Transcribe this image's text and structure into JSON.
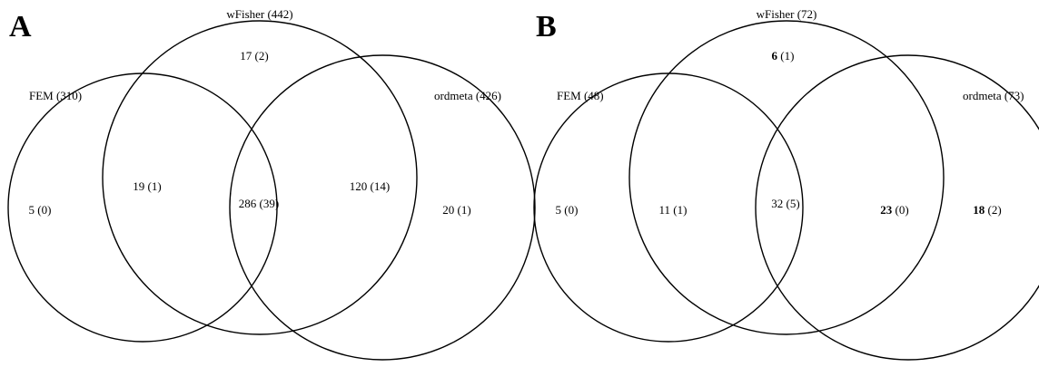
{
  "panels": [
    {
      "letter": "A",
      "sets": {
        "fem": "FEM (310)",
        "wfisher": "wFisher (442)",
        "ordmeta": "ordmeta (426)"
      },
      "regions": {
        "fem_only": {
          "count": "5",
          "extra": " (0)",
          "bold": false
        },
        "wfisher_only": {
          "count": "17",
          "extra": " (2)",
          "bold": false
        },
        "ordmeta_only": {
          "count": "20",
          "extra": " (1)",
          "bold": false
        },
        "fem_wfisher": {
          "count": "19",
          "extra": " (1)",
          "bold": false
        },
        "all_three": {
          "count": "286",
          "extra": " (39)",
          "bold": false
        },
        "wfisher_ordmeta": {
          "count": "120",
          "extra": " (14)",
          "bold": false
        }
      }
    },
    {
      "letter": "B",
      "sets": {
        "fem": "FEM (48)",
        "wfisher": "wFisher (72)",
        "ordmeta": "ordmeta (73)"
      },
      "regions": {
        "fem_only": {
          "count": "5",
          "extra": " (0)",
          "bold": false
        },
        "wfisher_only": {
          "count": "6",
          "extra": " (1)",
          "bold": true
        },
        "ordmeta_only": {
          "count": "18",
          "extra": " (2)",
          "bold": true
        },
        "fem_wfisher": {
          "count": "11",
          "extra": " (1)",
          "bold": false
        },
        "all_three": {
          "count": "32",
          "extra": " (5)",
          "bold": false
        },
        "wfisher_ordmeta": {
          "count": "23",
          "extra": " (0)",
          "bold": true
        }
      }
    }
  ]
}
